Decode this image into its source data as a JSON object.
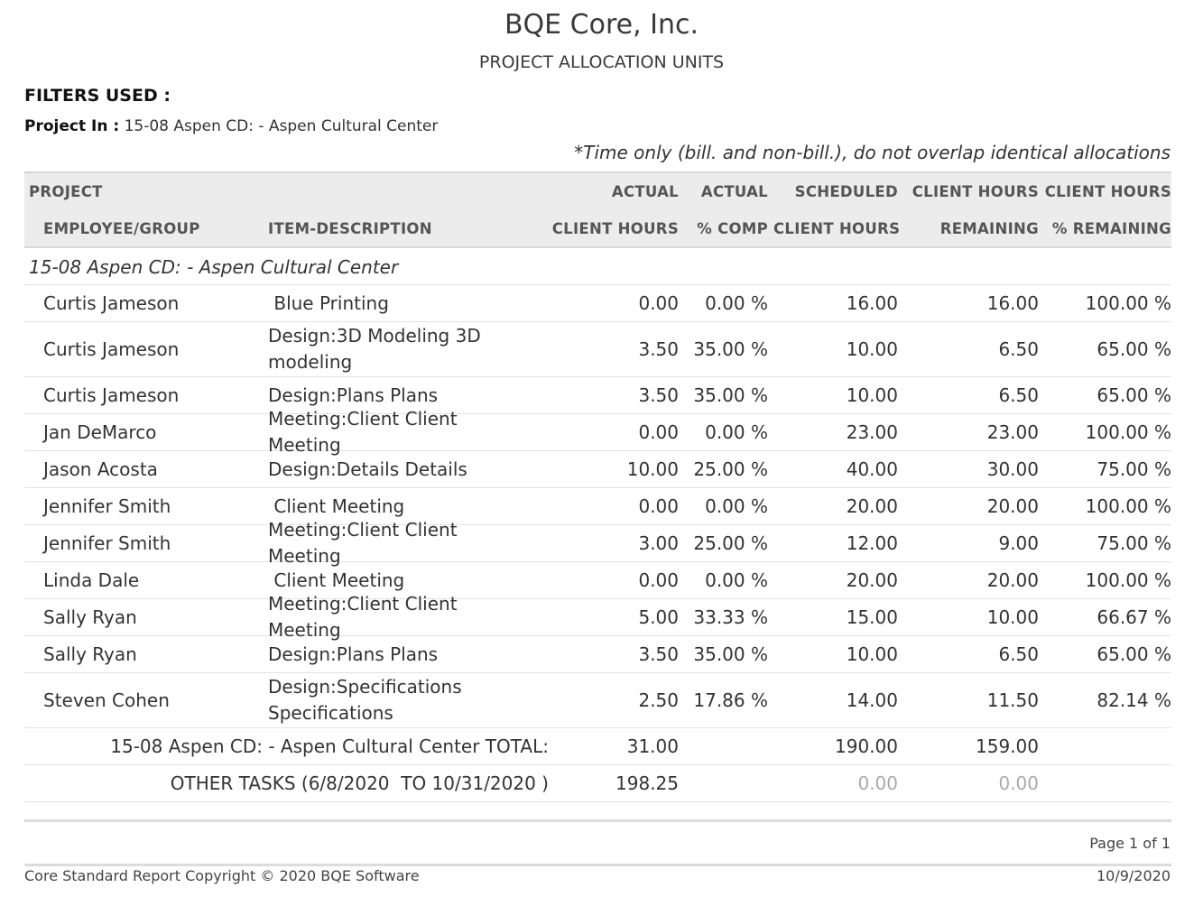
{
  "header": {
    "company": "BQE Core, Inc.",
    "report_title": "PROJECT ALLOCATION UNITS"
  },
  "filters": {
    "title": "FILTERS USED :",
    "project_label": "Project In :",
    "project_value": "15-08 Aspen CD: - Aspen Cultural Center"
  },
  "note": "*Time only (bill. and non-bill.), do not overlap identical allocations",
  "columns": {
    "project": "PROJECT",
    "employee_group": "EMPLOYEE/GROUP",
    "item_description": "ITEM-DESCRIPTION",
    "actual_top": "ACTUAL",
    "actual_bottom": "CLIENT HOURS",
    "pct_comp_top": "ACTUAL",
    "pct_comp_bottom": "% COMP",
    "scheduled_top": "SCHEDULED",
    "scheduled_bottom": "CLIENT HOURS",
    "remaining_top": "CLIENT HOURS",
    "remaining_bottom": "REMAINING",
    "pct_remaining_top": "CLIENT HOURS",
    "pct_remaining_bottom": "% REMAINING"
  },
  "group": {
    "name": "15-08 Aspen CD: - Aspen Cultural Center",
    "rows": [
      {
        "employee": "Curtis Jameson",
        "description": " Blue Printing",
        "actual": "0.00",
        "pct_comp": "0.00 %",
        "scheduled": "16.00",
        "remaining": "16.00",
        "pct_remaining": "100.00 %"
      },
      {
        "employee": "Curtis Jameson",
        "description": "Design:3D Modeling 3D modeling",
        "actual": "3.50",
        "pct_comp": "35.00 %",
        "scheduled": "10.00",
        "remaining": "6.50",
        "pct_remaining": "65.00 %"
      },
      {
        "employee": "Curtis Jameson",
        "description": "Design:Plans Plans",
        "actual": "3.50",
        "pct_comp": "35.00 %",
        "scheduled": "10.00",
        "remaining": "6.50",
        "pct_remaining": "65.00 %"
      },
      {
        "employee": "Jan DeMarco",
        "description": "Meeting:Client Client Meeting",
        "actual": "0.00",
        "pct_comp": "0.00 %",
        "scheduled": "23.00",
        "remaining": "23.00",
        "pct_remaining": "100.00 %"
      },
      {
        "employee": "Jason Acosta",
        "description": "Design:Details Details",
        "actual": "10.00",
        "pct_comp": "25.00 %",
        "scheduled": "40.00",
        "remaining": "30.00",
        "pct_remaining": "75.00 %"
      },
      {
        "employee": "Jennifer Smith",
        "description": " Client Meeting",
        "actual": "0.00",
        "pct_comp": "0.00 %",
        "scheduled": "20.00",
        "remaining": "20.00",
        "pct_remaining": "100.00 %"
      },
      {
        "employee": "Jennifer Smith",
        "description": "Meeting:Client Client Meeting",
        "actual": "3.00",
        "pct_comp": "25.00 %",
        "scheduled": "12.00",
        "remaining": "9.00",
        "pct_remaining": "75.00 %"
      },
      {
        "employee": "Linda Dale",
        "description": " Client Meeting",
        "actual": "0.00",
        "pct_comp": "0.00 %",
        "scheduled": "20.00",
        "remaining": "20.00",
        "pct_remaining": "100.00 %"
      },
      {
        "employee": "Sally Ryan",
        "description": "Meeting:Client Client Meeting",
        "actual": "5.00",
        "pct_comp": "33.33 %",
        "scheduled": "15.00",
        "remaining": "10.00",
        "pct_remaining": "66.67 %"
      },
      {
        "employee": "Sally Ryan",
        "description": "Design:Plans Plans",
        "actual": "3.50",
        "pct_comp": "35.00 %",
        "scheduled": "10.00",
        "remaining": "6.50",
        "pct_remaining": "65.00 %"
      },
      {
        "employee": "Steven Cohen",
        "description": "Design:Specifications Specifications",
        "actual": "2.50",
        "pct_comp": "17.86 %",
        "scheduled": "14.00",
        "remaining": "11.50",
        "pct_remaining": "82.14 %"
      }
    ]
  },
  "totals": {
    "label": "15-08 Aspen CD: - Aspen Cultural Center TOTAL:",
    "actual": "31.00",
    "scheduled": "190.00",
    "remaining": "159.00"
  },
  "other_tasks": {
    "label": "OTHER TASKS (6/8/2020  TO 10/31/2020 )",
    "actual": "198.25",
    "scheduled": "0.00",
    "remaining": "0.00"
  },
  "footer": {
    "page": "Page 1 of 1",
    "copyright": "Core Standard Report Copyright © 2020 BQE Software",
    "date": "10/9/2020"
  }
}
